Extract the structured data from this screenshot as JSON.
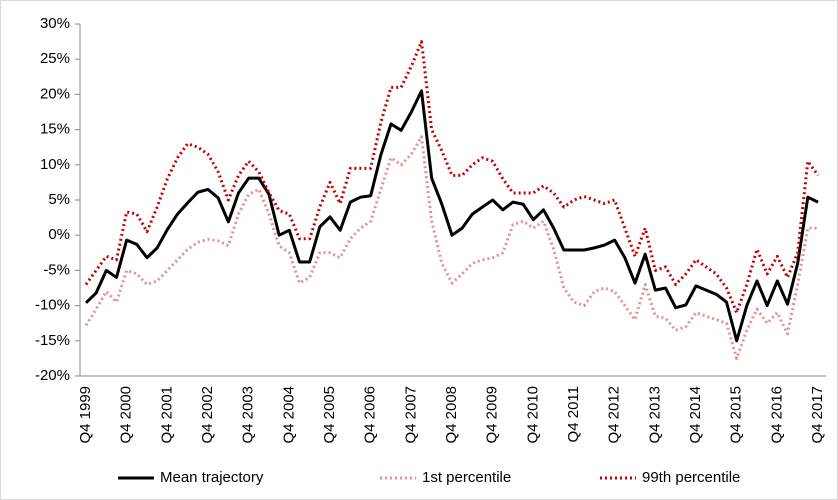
{
  "chart_data": {
    "type": "line",
    "categories": [
      "Q4 1999",
      null,
      null,
      null,
      "Q4 2000",
      null,
      null,
      null,
      "Q4 2001",
      null,
      null,
      null,
      "Q4 2002",
      null,
      null,
      null,
      "Q4 2003",
      null,
      null,
      null,
      "Q4 2004",
      null,
      null,
      null,
      "Q4 2005",
      null,
      null,
      null,
      "Q4 2006",
      null,
      null,
      null,
      "Q4 2007",
      null,
      null,
      null,
      "Q4 2008",
      null,
      null,
      null,
      "Q4 2009",
      null,
      null,
      null,
      "Q4 2010",
      null,
      null,
      null,
      "Q4 2011",
      null,
      null,
      null,
      "Q4 2012",
      null,
      null,
      null,
      "Q4 2013",
      null,
      null,
      null,
      "Q4 2014",
      null,
      null,
      null,
      "Q4 2015",
      null,
      null,
      null,
      "Q4 2016",
      null,
      null,
      null,
      "Q4 2017"
    ],
    "series": [
      {
        "name": "Mean trajectory",
        "color": "#000000",
        "style": "solid",
        "values": [
          -9.6,
          -8.2,
          -5,
          -6,
          -0.7,
          -1.3,
          -3.2,
          -1.8,
          0.8,
          3,
          4.6,
          6.1,
          6.5,
          5.3,
          1.9,
          6,
          8.1,
          8.1,
          5.8,
          0,
          0.7,
          -3.8,
          -3.8,
          1.2,
          2.6,
          0.7,
          4.7,
          5.4,
          5.6,
          11.4,
          15.8,
          14.9,
          17.5,
          20.5,
          8.1,
          4.4,
          0,
          1,
          3,
          4,
          5,
          3.6,
          4.7,
          4.4,
          2.2,
          3.6,
          1,
          -2.1,
          -2.1,
          -2.1,
          -1.8,
          -1.4,
          -0.7,
          -3.2,
          -6.8,
          -2.7,
          -7.8,
          -7.5,
          -10.3,
          -9.9,
          -7.2,
          -7.8,
          -8.4,
          -9.5,
          -15,
          -10,
          -6.5,
          -10,
          -6.5,
          -9.8,
          -4,
          5.4,
          4.7
        ]
      },
      {
        "name": "1st percentile",
        "color": "#e88e8e",
        "style": "dotted",
        "values": [
          -12.8,
          -10.5,
          -8,
          -9.5,
          -5,
          -5.5,
          -7,
          -6.5,
          -5,
          -3.5,
          -2,
          -1,
          -0.6,
          -0.8,
          -1.5,
          3,
          5.8,
          6.5,
          3,
          -1.5,
          -2.5,
          -6.8,
          -6,
          -2.5,
          -2.5,
          -3.2,
          -0.5,
          1,
          2,
          6.5,
          11,
          10,
          11.5,
          14,
          2,
          -4,
          -6.8,
          -5.5,
          -4,
          -3.5,
          -3.2,
          -2.5,
          1.5,
          2,
          1,
          2,
          -2,
          -7.5,
          -9.5,
          -10,
          -8,
          -7.5,
          -8,
          -10,
          -12,
          -7,
          -11.5,
          -11.8,
          -13.5,
          -13,
          -11,
          -11.5,
          -12,
          -12.5,
          -17.5,
          -13.5,
          -10.5,
          -12.5,
          -11,
          -14,
          -7,
          1,
          1
        ]
      },
      {
        "name": "99th percentile",
        "color": "#c00000",
        "style": "dotted",
        "values": [
          -7,
          -5,
          -3,
          -3.5,
          3.3,
          3,
          0.5,
          4,
          8,
          11,
          13,
          12.5,
          11.5,
          9,
          5,
          8.5,
          10.5,
          9,
          6,
          3.5,
          3,
          -0.5,
          -0.5,
          4,
          7.5,
          4.5,
          9.5,
          9.5,
          9.5,
          16,
          21,
          21,
          24,
          27.5,
          15,
          12,
          8.5,
          8.5,
          10,
          11,
          10.5,
          8,
          6,
          6,
          6,
          7,
          6,
          4,
          5,
          5.5,
          5,
          4.5,
          5,
          1,
          -3,
          1,
          -5,
          -4.5,
          -7,
          -5.5,
          -3.5,
          -4.5,
          -5.5,
          -7.5,
          -11,
          -7,
          -2,
          -5.5,
          -3,
          -6,
          -2.5,
          10.5,
          8.5
        ]
      }
    ],
    "ylim": [
      -20,
      30
    ],
    "yticks": [
      {
        "value": -20,
        "label": "-20%"
      },
      {
        "value": -15,
        "label": "-15%"
      },
      {
        "value": -10,
        "label": "-10%"
      },
      {
        "value": -5,
        "label": "-5%"
      },
      {
        "value": 0,
        "label": "0%"
      },
      {
        "value": 5,
        "label": "5%"
      },
      {
        "value": 10,
        "label": "10%"
      },
      {
        "value": 15,
        "label": "15%"
      },
      {
        "value": 20,
        "label": "20%"
      },
      {
        "value": 25,
        "label": "25%"
      },
      {
        "value": 30,
        "label": "30%"
      }
    ],
    "grid": false,
    "legend": "bottom"
  }
}
